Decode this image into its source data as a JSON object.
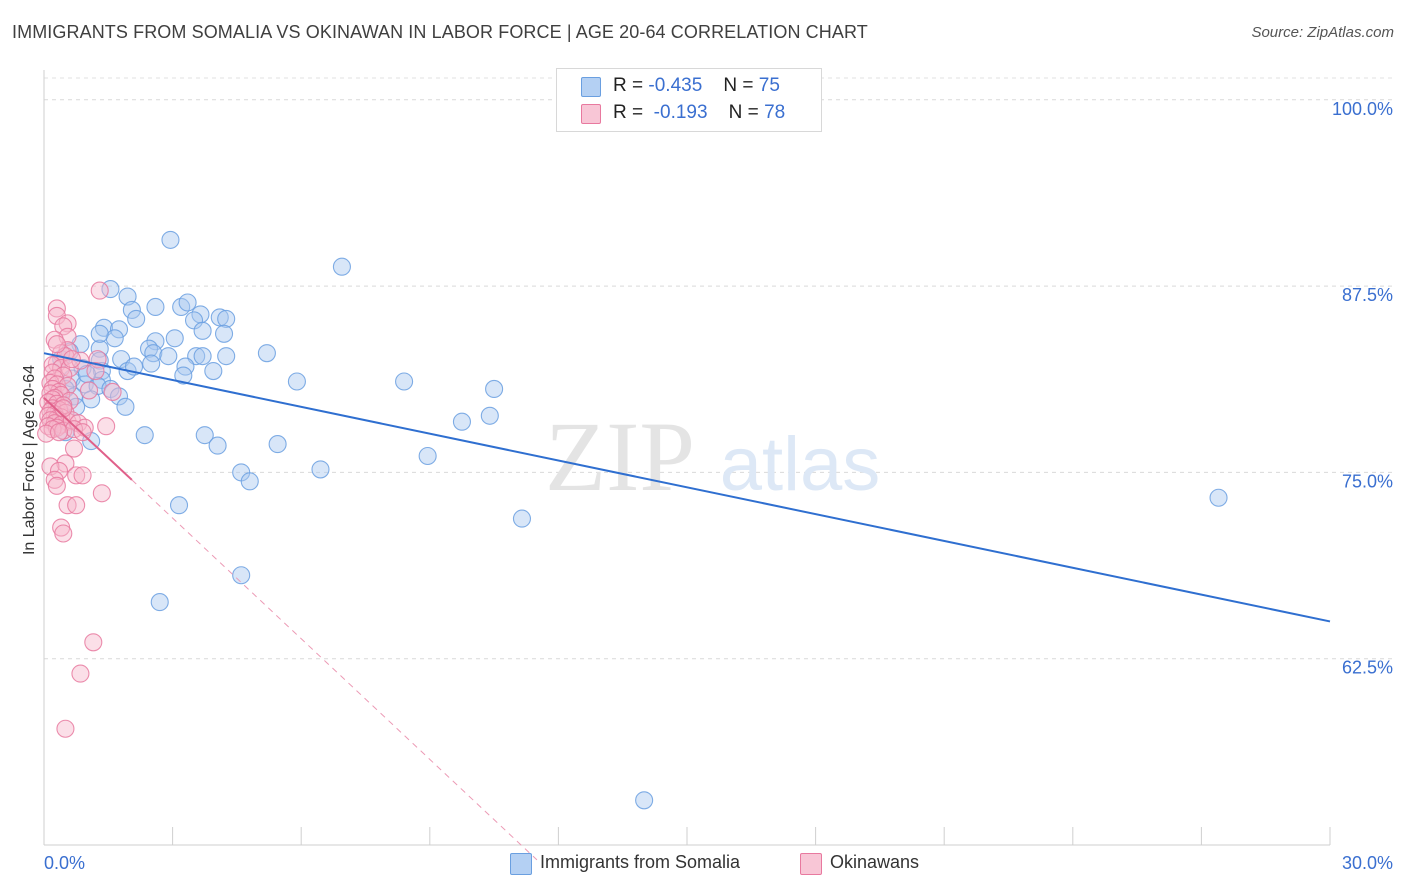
{
  "title": "IMMIGRANTS FROM SOMALIA VS OKINAWAN IN LABOR FORCE | AGE 20-64 CORRELATION CHART",
  "source": "Source: ZipAtlas.com",
  "watermark": {
    "zip": "ZIP",
    "atlas": "atlas"
  },
  "legend": {
    "series1": {
      "r_label": "R =",
      "r_value": "-0.435",
      "n_label": "N =",
      "n_value": "75"
    },
    "series2": {
      "r_label": "R =",
      "r_value": "-0.193",
      "n_label": "N =",
      "n_value": "78"
    }
  },
  "bottom_legend": {
    "series1": "Immigrants from Somalia",
    "series2": "Okinawans"
  },
  "chart_data": {
    "type": "scatter",
    "title": "IMMIGRANTS FROM SOMALIA VS OKINAWAN IN LABOR FORCE | AGE 20-64 CORRELATION CHART",
    "xlabel": "",
    "ylabel": "In Labor Force | Age 20-64",
    "xlim": [
      0,
      30
    ],
    "ylim": [
      50,
      102
    ],
    "x_ticks": [
      "0.0%",
      "30.0%"
    ],
    "y_ticks": [
      {
        "value": 100,
        "label": "100.0%"
      },
      {
        "value": 87.5,
        "label": "87.5%"
      },
      {
        "value": 75,
        "label": "75.0%"
      },
      {
        "value": 62.5,
        "label": "62.5%"
      }
    ],
    "grid": true,
    "legend_position": "top-center",
    "series": [
      {
        "name": "Immigrants from Somalia",
        "color": "#6a9fe0",
        "fill": "#a9c8f0",
        "trend": {
          "x": [
            0,
            30
          ],
          "y": [
            83.0,
            65.0
          ]
        },
        "points": [
          [
            2.95,
            90.6
          ],
          [
            6.95,
            88.8
          ],
          [
            1.55,
            87.3
          ],
          [
            1.95,
            86.8
          ],
          [
            2.6,
            86.1
          ],
          [
            3.2,
            86.1
          ],
          [
            3.35,
            86.4
          ],
          [
            2.05,
            85.9
          ],
          [
            3.65,
            85.6
          ],
          [
            4.1,
            85.4
          ],
          [
            3.5,
            85.2
          ],
          [
            2.15,
            85.3
          ],
          [
            1.4,
            84.7
          ],
          [
            4.25,
            85.3
          ],
          [
            1.75,
            84.6
          ],
          [
            3.7,
            84.5
          ],
          [
            4.2,
            84.3
          ],
          [
            1.65,
            84.0
          ],
          [
            3.05,
            84.0
          ],
          [
            2.6,
            83.8
          ],
          [
            0.85,
            83.6
          ],
          [
            2.45,
            83.3
          ],
          [
            1.3,
            83.3
          ],
          [
            5.2,
            83.0
          ],
          [
            2.55,
            83.0
          ],
          [
            3.55,
            82.8
          ],
          [
            4.25,
            82.8
          ],
          [
            3.7,
            82.8
          ],
          [
            2.9,
            82.8
          ],
          [
            1.8,
            82.6
          ],
          [
            0.4,
            82.6
          ],
          [
            1.3,
            82.5
          ],
          [
            2.5,
            82.3
          ],
          [
            3.3,
            82.1
          ],
          [
            0.9,
            82.0
          ],
          [
            1.95,
            81.8
          ],
          [
            3.95,
            81.8
          ],
          [
            1.35,
            81.8
          ],
          [
            3.25,
            81.5
          ],
          [
            0.65,
            81.3
          ],
          [
            1.35,
            81.2
          ],
          [
            5.9,
            81.1
          ],
          [
            8.4,
            81.1
          ],
          [
            0.95,
            80.9
          ],
          [
            1.25,
            80.8
          ],
          [
            0.5,
            80.6
          ],
          [
            1.55,
            80.6
          ],
          [
            10.5,
            80.6
          ],
          [
            1.75,
            80.1
          ],
          [
            0.7,
            80.1
          ],
          [
            1.1,
            79.9
          ],
          [
            1.9,
            79.4
          ],
          [
            0.75,
            79.4
          ],
          [
            10.4,
            78.8
          ],
          [
            9.75,
            78.4
          ],
          [
            0.5,
            77.7
          ],
          [
            2.35,
            77.5
          ],
          [
            3.75,
            77.5
          ],
          [
            1.1,
            77.1
          ],
          [
            4.05,
            76.8
          ],
          [
            5.45,
            76.9
          ],
          [
            8.95,
            76.1
          ],
          [
            6.45,
            75.2
          ],
          [
            4.6,
            75.0
          ],
          [
            4.8,
            74.4
          ],
          [
            3.15,
            72.8
          ],
          [
            11.15,
            71.9
          ],
          [
            27.4,
            73.3
          ],
          [
            4.6,
            68.1
          ],
          [
            2.7,
            66.3
          ],
          [
            14.0,
            53.0
          ],
          [
            1.3,
            84.3
          ],
          [
            2.1,
            82.1
          ],
          [
            0.6,
            83.1
          ],
          [
            1.0,
            81.6
          ]
        ]
      },
      {
        "name": "Okinawans",
        "color": "#e8799f",
        "fill": "#f6b8cc",
        "trend": {
          "x": [
            0,
            2.05
          ],
          "y": [
            80.0,
            74.5
          ]
        },
        "trend_dashed": {
          "x": [
            2.05,
            11.5
          ],
          "y": [
            74.5,
            49.0
          ]
        },
        "points": [
          [
            1.3,
            87.2
          ],
          [
            0.3,
            86.0
          ],
          [
            0.3,
            85.5
          ],
          [
            0.55,
            85.0
          ],
          [
            0.45,
            84.8
          ],
          [
            0.55,
            84.1
          ],
          [
            0.25,
            83.9
          ],
          [
            0.55,
            83.2
          ],
          [
            0.4,
            83.0
          ],
          [
            0.5,
            82.8
          ],
          [
            1.25,
            82.6
          ],
          [
            0.3,
            82.3
          ],
          [
            0.2,
            82.2
          ],
          [
            0.4,
            82.0
          ],
          [
            0.6,
            82.0
          ],
          [
            1.2,
            81.8
          ],
          [
            0.2,
            81.7
          ],
          [
            0.45,
            81.5
          ],
          [
            0.25,
            81.3
          ],
          [
            0.15,
            81.0
          ],
          [
            0.3,
            80.9
          ],
          [
            0.55,
            80.8
          ],
          [
            0.2,
            80.6
          ],
          [
            0.35,
            80.4
          ],
          [
            0.15,
            80.3
          ],
          [
            0.4,
            80.2
          ],
          [
            0.25,
            80.0
          ],
          [
            0.2,
            79.9
          ],
          [
            0.6,
            79.8
          ],
          [
            0.1,
            79.7
          ],
          [
            0.3,
            79.6
          ],
          [
            0.45,
            79.5
          ],
          [
            0.2,
            79.3
          ],
          [
            0.35,
            79.2
          ],
          [
            0.15,
            79.1
          ],
          [
            0.5,
            79.0
          ],
          [
            0.25,
            78.9
          ],
          [
            0.1,
            78.8
          ],
          [
            0.4,
            78.7
          ],
          [
            0.3,
            78.6
          ],
          [
            0.15,
            78.5
          ],
          [
            0.55,
            78.4
          ],
          [
            0.25,
            78.3
          ],
          [
            0.4,
            78.2
          ],
          [
            0.1,
            78.1
          ],
          [
            0.3,
            78.0
          ],
          [
            0.2,
            77.9
          ],
          [
            0.45,
            77.8
          ],
          [
            0.65,
            78.5
          ],
          [
            0.8,
            78.3
          ],
          [
            0.95,
            78.0
          ],
          [
            1.45,
            78.1
          ],
          [
            0.7,
            77.9
          ],
          [
            0.9,
            77.7
          ],
          [
            0.05,
            77.6
          ],
          [
            0.35,
            77.7
          ],
          [
            1.05,
            80.5
          ],
          [
            0.85,
            82.5
          ],
          [
            1.6,
            80.4
          ],
          [
            0.7,
            76.6
          ],
          [
            0.5,
            75.6
          ],
          [
            0.15,
            75.4
          ],
          [
            0.35,
            75.1
          ],
          [
            0.75,
            74.8
          ],
          [
            0.9,
            74.8
          ],
          [
            0.25,
            74.5
          ],
          [
            0.3,
            74.1
          ],
          [
            1.35,
            73.6
          ],
          [
            0.55,
            72.8
          ],
          [
            0.75,
            72.8
          ],
          [
            0.4,
            71.3
          ],
          [
            0.45,
            70.9
          ],
          [
            1.15,
            63.6
          ],
          [
            0.85,
            61.5
          ],
          [
            0.5,
            57.8
          ],
          [
            0.65,
            82.6
          ],
          [
            0.3,
            83.6
          ],
          [
            0.45,
            79.3
          ]
        ]
      }
    ]
  }
}
